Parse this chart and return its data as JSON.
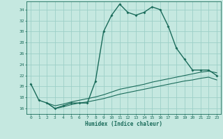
{
  "title": "",
  "xlabel": "Humidex (Indice chaleur)",
  "background_color": "#c5e8e0",
  "grid_color": "#9dcfc7",
  "line_color": "#1a6b5a",
  "xlim": [
    -0.5,
    23.5
  ],
  "ylim": [
    15.0,
    35.5
  ],
  "yticks": [
    16,
    18,
    20,
    22,
    24,
    26,
    28,
    30,
    32,
    34
  ],
  "xticks": [
    0,
    1,
    2,
    3,
    4,
    5,
    6,
    7,
    8,
    9,
    10,
    11,
    12,
    13,
    14,
    15,
    16,
    17,
    18,
    19,
    20,
    21,
    22,
    23
  ],
  "series1_x": [
    0,
    1,
    2,
    3,
    4,
    5,
    6,
    7,
    8,
    9,
    10,
    11,
    12,
    13,
    14,
    15,
    16,
    17,
    18,
    19,
    20,
    21,
    22,
    23
  ],
  "series1_y": [
    20.5,
    17.5,
    17.0,
    16.0,
    16.5,
    17.0,
    17.0,
    17.0,
    21.0,
    30.0,
    33.0,
    35.0,
    33.5,
    33.0,
    33.5,
    34.5,
    34.0,
    31.0,
    27.0,
    25.0,
    23.0,
    23.0,
    23.0,
    22.0
  ],
  "series2_x": [
    2,
    3,
    4,
    5,
    6,
    7,
    8,
    9,
    10,
    11,
    12,
    13,
    14,
    15,
    16,
    17,
    18,
    19,
    20,
    21,
    22,
    23
  ],
  "series2_y": [
    17.0,
    16.5,
    16.8,
    17.2,
    17.5,
    17.8,
    18.1,
    18.5,
    19.0,
    19.5,
    19.8,
    20.1,
    20.4,
    20.8,
    21.1,
    21.4,
    21.7,
    22.0,
    22.3,
    22.6,
    22.8,
    22.5
  ],
  "series3_x": [
    2,
    3,
    4,
    5,
    6,
    7,
    8,
    9,
    10,
    11,
    12,
    13,
    14,
    15,
    16,
    17,
    18,
    19,
    20,
    21,
    22,
    23
  ],
  "series3_y": [
    17.0,
    16.0,
    16.3,
    16.7,
    17.0,
    17.2,
    17.5,
    17.8,
    18.2,
    18.6,
    18.9,
    19.2,
    19.5,
    19.8,
    20.1,
    20.4,
    20.7,
    21.0,
    21.2,
    21.5,
    21.7,
    21.2
  ]
}
